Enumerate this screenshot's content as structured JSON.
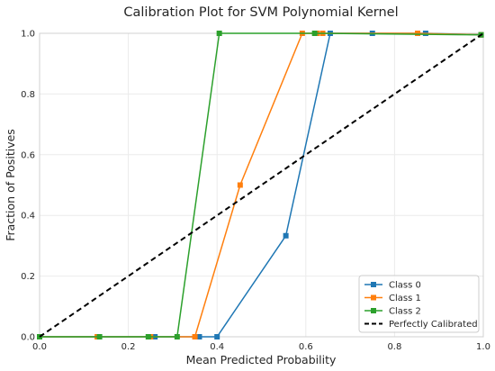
{
  "chart_data": {
    "type": "line",
    "title": "Calibration Plot for SVM Polynomial Kernel",
    "xlabel": "Mean Predicted Probability",
    "ylabel": "Fraction of Positives",
    "xlim": [
      0,
      1
    ],
    "ylim": [
      0,
      1
    ],
    "x_ticks": [
      "0.0",
      "0.2",
      "0.4",
      "0.6",
      "0.8",
      "1.0"
    ],
    "y_ticks": [
      "0.0",
      "0.2",
      "0.4",
      "0.6",
      "0.8",
      "1.0"
    ],
    "grid": true,
    "legend_position": "bottom-right",
    "series": [
      {
        "name": "Class 0",
        "color": "#1f77b4",
        "marker": "square",
        "x": [
          0.0,
          0.135,
          0.26,
          0.36,
          0.4,
          0.555,
          0.655,
          0.75,
          0.87,
          0.995
        ],
        "y": [
          0.0,
          0.0,
          0.0,
          0.0,
          0.0,
          0.333,
          1.0,
          1.0,
          1.0,
          0.995
        ]
      },
      {
        "name": "Class 1",
        "color": "#ff7f0e",
        "marker": "square",
        "x": [
          0.0,
          0.13,
          0.25,
          0.35,
          0.452,
          0.592,
          0.625,
          0.638,
          0.852,
          0.995
        ],
        "y": [
          0.0,
          0.0,
          0.0,
          0.0,
          0.5,
          1.0,
          1.0,
          1.0,
          1.0,
          0.995
        ]
      },
      {
        "name": "Class 2",
        "color": "#2ca02c",
        "marker": "square",
        "x": [
          0.0,
          0.135,
          0.245,
          0.31,
          0.405,
          0.62,
          0.995
        ],
        "y": [
          0.0,
          0.0,
          0.0,
          0.0,
          1.0,
          1.0,
          0.995
        ]
      },
      {
        "name": "Perfectly Calibrated",
        "color": "#000000",
        "style": "dashed",
        "x": [
          0,
          1
        ],
        "y": [
          0,
          1
        ]
      }
    ]
  }
}
